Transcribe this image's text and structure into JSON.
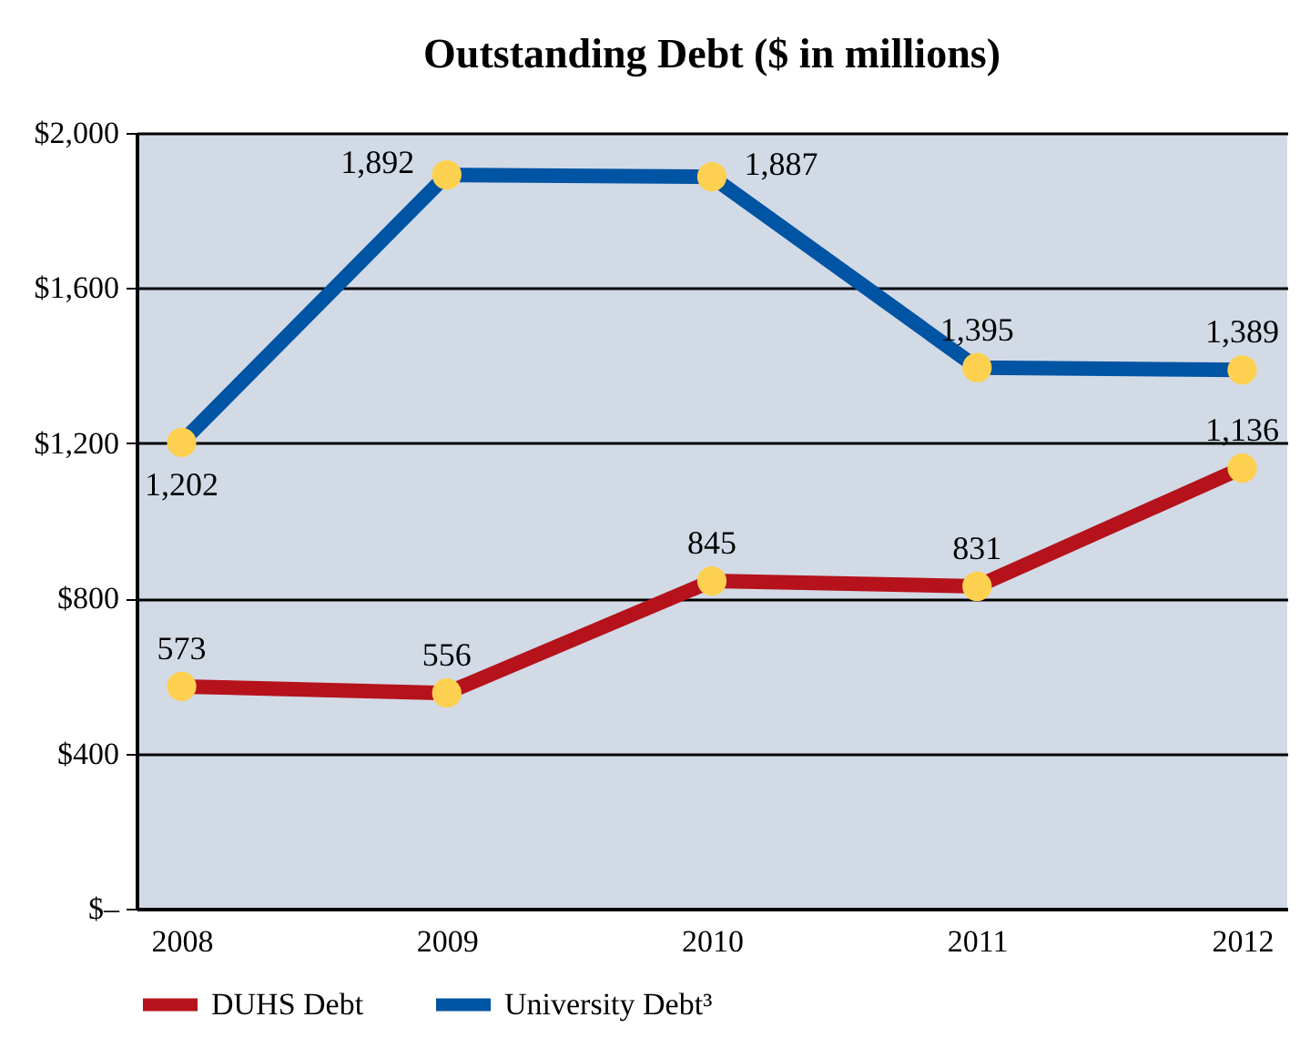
{
  "chart_data": {
    "type": "line",
    "title": "Outstanding Debt ($ in millions)",
    "categories": [
      "2008",
      "2009",
      "2010",
      "2011",
      "2012"
    ],
    "series": [
      {
        "name": "DUHS Debt",
        "color": "#b5121b",
        "values": [
          573,
          556,
          845,
          831,
          1136
        ],
        "value_labels": [
          "573",
          "556",
          "845",
          "831",
          "1,136"
        ]
      },
      {
        "name": "University Debt³",
        "color": "#0054a4",
        "values": [
          1202,
          1892,
          1887,
          1395,
          1389
        ],
        "value_labels": [
          "1,202",
          "1,892",
          "1,887",
          "1,395",
          "1,389"
        ]
      }
    ],
    "ylim": [
      0,
      2000
    ],
    "yticks": [
      {
        "value": 0,
        "label": "$–"
      },
      {
        "value": 400,
        "label": "$400"
      },
      {
        "value": 800,
        "label": "$800"
      },
      {
        "value": 1200,
        "label": "$1,200"
      },
      {
        "value": 1600,
        "label": "$1,600"
      },
      {
        "value": 2000,
        "label": "$2,000"
      }
    ],
    "grid": "y",
    "legend": "bottom",
    "marker": "circle",
    "line_style": "solid"
  }
}
